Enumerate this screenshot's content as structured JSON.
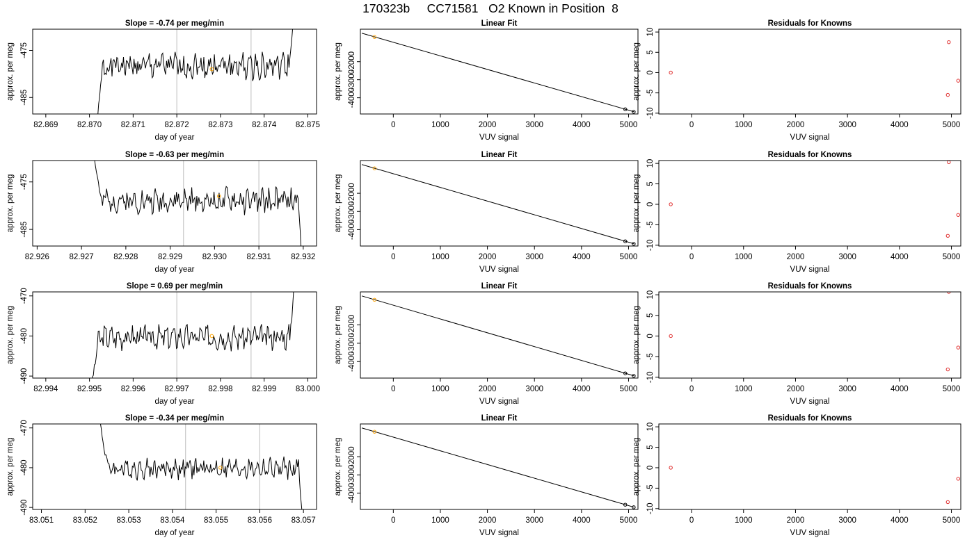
{
  "page": {
    "title": "170323b     CC71581   O2 Known in Position  8"
  },
  "colors": {
    "trace": "#000000",
    "vline": "#c8c8c8",
    "highlight": "#ffa500",
    "residual": "#e03030",
    "frame": "#000000"
  },
  "chart_data": [
    {
      "type": "line",
      "panel": "time-series",
      "title": "Slope =  -0.74  per meg/min",
      "xlabel": "day of year",
      "ylabel": "approx. per meg",
      "xlim": [
        82.8687,
        82.8752
      ],
      "ylim": [
        -488.5,
        -470.5
      ],
      "xticks": [
        "82.869",
        "82.870",
        "82.871",
        "82.872",
        "82.873",
        "82.874",
        "82.875"
      ],
      "xtick_values": [
        82.869,
        82.87,
        82.871,
        82.872,
        82.873,
        82.874,
        82.875
      ],
      "yticks": [
        "-475",
        "-485"
      ],
      "ytick_values": [
        -475,
        -485
      ],
      "vlines": [
        82.872,
        82.8737
      ],
      "highlight_point": {
        "x": 82.8728,
        "y": -479
      },
      "trace": {
        "x_start": 82.8701,
        "x_end": 82.8747,
        "base": -478.3,
        "noise": 2.2,
        "start_y": -495,
        "end_y": -462,
        "seed": 1
      }
    },
    {
      "type": "scatter",
      "panel": "linear-fit",
      "title": "Linear Fit",
      "xlabel": "VUV signal",
      "ylabel": "approx. per meg",
      "xlim": [
        -700,
        5200
      ],
      "ylim": [
        -4900,
        -200
      ],
      "xticks": [
        "0",
        "1000",
        "2000",
        "3000",
        "4000",
        "5000"
      ],
      "xtick_values": [
        0,
        1000,
        2000,
        3000,
        4000,
        5000
      ],
      "yticks": [
        "-2000",
        "-3000",
        "-4000"
      ],
      "ytick_values": [
        -2000,
        -3000,
        -4000
      ],
      "line": {
        "x": [
          -670,
          5120
        ],
        "y": [
          -420,
          -4780
        ]
      },
      "points": [
        {
          "x": -400,
          "y": -630,
          "color": "orange"
        },
        {
          "x": 4930,
          "y": -4640,
          "color": "black"
        },
        {
          "x": 5110,
          "y": -4780,
          "color": "black"
        }
      ]
    },
    {
      "type": "scatter",
      "panel": "residuals",
      "title": "Residuals for Knowns",
      "xlabel": "VUV signal",
      "ylabel": "approx. per meg",
      "xlim": [
        -630,
        5180
      ],
      "ylim": [
        -10.2,
        10.7
      ],
      "xticks": [
        "0",
        "1000",
        "2000",
        "3000",
        "4000",
        "5000"
      ],
      "xtick_values": [
        0,
        1000,
        2000,
        3000,
        4000,
        5000
      ],
      "yticks": [
        "10",
        "5",
        "0",
        "-5",
        "-10"
      ],
      "ytick_values": [
        10,
        5,
        0,
        -5,
        -10
      ],
      "points": [
        {
          "x": -400,
          "y": 0
        },
        {
          "x": 4950,
          "y": 7.5
        },
        {
          "x": 5130,
          "y": -2
        },
        {
          "x": 4930,
          "y": -5.5
        }
      ]
    },
    {
      "type": "line",
      "panel": "time-series",
      "title": "Slope =  -0.63  per meg/min",
      "xlabel": "day of year",
      "ylabel": "approx. per meg",
      "xlim": [
        82.9259,
        82.9323
      ],
      "ylim": [
        -488.5,
        -470.5
      ],
      "xticks": [
        "82.926",
        "82.927",
        "82.928",
        "82.929",
        "82.930",
        "82.931",
        "82.932"
      ],
      "xtick_values": [
        82.926,
        82.927,
        82.928,
        82.929,
        82.93,
        82.931,
        82.932
      ],
      "yticks": [
        "-475",
        "-485"
      ],
      "ytick_values": [
        -475,
        -485
      ],
      "vlines": [
        82.9293,
        82.931
      ],
      "highlight_point": {
        "x": 82.9301,
        "y": -478
      },
      "trace": {
        "x_start": 82.9272,
        "x_end": 82.932,
        "base": -479,
        "noise": 2.0,
        "start_y": -463,
        "end_y": -495,
        "seed": 2
      }
    },
    {
      "type": "scatter",
      "panel": "linear-fit",
      "title": "Linear Fit",
      "xlabel": "VUV signal",
      "ylabel": "approx. per meg",
      "xlim": [
        -700,
        5200
      ],
      "ylim": [
        -4900,
        -200
      ],
      "xticks": [
        "0",
        "1000",
        "2000",
        "3000",
        "4000",
        "5000"
      ],
      "xtick_values": [
        0,
        1000,
        2000,
        3000,
        4000,
        5000
      ],
      "yticks": [
        "-2000",
        "-3000",
        "-4000"
      ],
      "ytick_values": [
        -2000,
        -3000,
        -4000
      ],
      "line": {
        "x": [
          -670,
          5120
        ],
        "y": [
          -420,
          -4780
        ]
      },
      "points": [
        {
          "x": -400,
          "y": -630,
          "color": "orange"
        },
        {
          "x": 4930,
          "y": -4640,
          "color": "black"
        },
        {
          "x": 5110,
          "y": -4780,
          "color": "black"
        }
      ]
    },
    {
      "type": "scatter",
      "panel": "residuals",
      "title": "Residuals for Knowns",
      "xlabel": "VUV signal",
      "ylabel": "approx. per meg",
      "xlim": [
        -630,
        5180
      ],
      "ylim": [
        -10.2,
        10.7
      ],
      "xticks": [
        "0",
        "1000",
        "2000",
        "3000",
        "4000",
        "5000"
      ],
      "xtick_values": [
        0,
        1000,
        2000,
        3000,
        4000,
        5000
      ],
      "yticks": [
        "10",
        "5",
        "0",
        "-5",
        "-10"
      ],
      "ytick_values": [
        10,
        5,
        0,
        -5,
        -10
      ],
      "points": [
        {
          "x": -400,
          "y": 0
        },
        {
          "x": 4950,
          "y": 10.3
        },
        {
          "x": 5130,
          "y": -2.6
        },
        {
          "x": 4930,
          "y": -7.7
        }
      ]
    },
    {
      "type": "line",
      "panel": "time-series",
      "title": "Slope =  0.69  per meg/min",
      "xlabel": "day of year",
      "ylabel": "approx. per meg",
      "xlim": [
        82.9937,
        83.0002
      ],
      "ylim": [
        -490.5,
        -469
      ],
      "xticks": [
        "82.994",
        "82.995",
        "82.996",
        "82.997",
        "82.998",
        "82.999",
        "83.000"
      ],
      "xtick_values": [
        82.994,
        82.995,
        82.996,
        82.997,
        82.998,
        82.999,
        83.0
      ],
      "yticks": [
        "-470",
        "-480",
        "-490"
      ],
      "ytick_values": [
        -470,
        -480,
        -490
      ],
      "vlines": [
        82.997,
        82.9987
      ],
      "highlight_point": {
        "x": 82.9978,
        "y": -480
      },
      "trace": {
        "x_start": 82.995,
        "x_end": 82.9997,
        "base": -480.3,
        "noise": 2.3,
        "start_y": -495,
        "end_y": -465,
        "seed": 3
      }
    },
    {
      "type": "scatter",
      "panel": "linear-fit",
      "title": "Linear Fit",
      "xlabel": "VUV signal",
      "ylabel": "approx. per meg",
      "xlim": [
        -700,
        5200
      ],
      "ylim": [
        -4900,
        -200
      ],
      "xticks": [
        "0",
        "1000",
        "2000",
        "3000",
        "4000",
        "5000"
      ],
      "xtick_values": [
        0,
        1000,
        2000,
        3000,
        4000,
        5000
      ],
      "yticks": [
        "-2000",
        "-3000",
        "-4000"
      ],
      "ytick_values": [
        -2000,
        -3000,
        -4000
      ],
      "line": {
        "x": [
          -670,
          5120
        ],
        "y": [
          -420,
          -4780
        ]
      },
      "points": [
        {
          "x": -400,
          "y": -630,
          "color": "orange"
        },
        {
          "x": 4930,
          "y": -4640,
          "color": "black"
        },
        {
          "x": 5110,
          "y": -4780,
          "color": "black"
        }
      ]
    },
    {
      "type": "scatter",
      "panel": "residuals",
      "title": "Residuals for Knowns",
      "xlabel": "VUV signal",
      "ylabel": "approx. per meg",
      "xlim": [
        -630,
        5180
      ],
      "ylim": [
        -10.2,
        10.7
      ],
      "xticks": [
        "0",
        "1000",
        "2000",
        "3000",
        "4000",
        "5000"
      ],
      "xtick_values": [
        0,
        1000,
        2000,
        3000,
        4000,
        5000
      ],
      "yticks": [
        "10",
        "5",
        "0",
        "-5",
        "-10"
      ],
      "ytick_values": [
        10,
        5,
        0,
        -5,
        -10
      ],
      "points": [
        {
          "x": -400,
          "y": 0
        },
        {
          "x": 4950,
          "y": 10.7
        },
        {
          "x": 5130,
          "y": -2.8
        },
        {
          "x": 4930,
          "y": -8.1
        }
      ]
    },
    {
      "type": "line",
      "panel": "time-series",
      "title": "Slope =  -0.34  per meg/min",
      "xlabel": "day of year",
      "ylabel": "approx. per meg",
      "xlim": [
        83.0508,
        83.0573
      ],
      "ylim": [
        -490.5,
        -469
      ],
      "xticks": [
        "83.051",
        "83.052",
        "83.053",
        "83.054",
        "83.055",
        "83.056",
        "83.057"
      ],
      "xtick_values": [
        83.051,
        83.052,
        83.053,
        83.054,
        83.055,
        83.056,
        83.057
      ],
      "yticks": [
        "-470",
        "-480",
        "-490"
      ],
      "ytick_values": [
        -470,
        -480,
        -490
      ],
      "vlines": [
        83.0543,
        83.056
      ],
      "highlight_point": {
        "x": 83.0551,
        "y": -480
      },
      "trace": {
        "x_start": 83.0523,
        "x_end": 83.057,
        "base": -480.2,
        "noise": 2.0,
        "start_y": -466,
        "end_y": -495,
        "seed": 4
      }
    },
    {
      "type": "scatter",
      "panel": "linear-fit",
      "title": "Linear Fit",
      "xlabel": "VUV signal",
      "ylabel": "approx. per meg",
      "xlim": [
        -700,
        5200
      ],
      "ylim": [
        -4900,
        -200
      ],
      "xticks": [
        "0",
        "1000",
        "2000",
        "3000",
        "4000",
        "5000"
      ],
      "xtick_values": [
        0,
        1000,
        2000,
        3000,
        4000,
        5000
      ],
      "yticks": [
        "-2000",
        "-3000",
        "-4000"
      ],
      "ytick_values": [
        -2000,
        -3000,
        -4000
      ],
      "line": {
        "x": [
          -670,
          5120
        ],
        "y": [
          -420,
          -4780
        ]
      },
      "points": [
        {
          "x": -400,
          "y": -630,
          "color": "orange"
        },
        {
          "x": 4930,
          "y": -4640,
          "color": "black"
        },
        {
          "x": 5110,
          "y": -4780,
          "color": "black"
        }
      ]
    },
    {
      "type": "scatter",
      "panel": "residuals",
      "title": "Residuals for Knowns",
      "xlabel": "VUV signal",
      "ylabel": "approx. per meg",
      "xlim": [
        -630,
        5180
      ],
      "ylim": [
        -10.2,
        10.7
      ],
      "xticks": [
        "0",
        "1000",
        "2000",
        "3000",
        "4000",
        "5000"
      ],
      "xtick_values": [
        0,
        1000,
        2000,
        3000,
        4000,
        5000
      ],
      "yticks": [
        "10",
        "5",
        "0",
        "-5",
        "-10"
      ],
      "ytick_values": [
        10,
        5,
        0,
        -5,
        -10
      ],
      "points": [
        {
          "x": -400,
          "y": 0
        },
        {
          "x": 5130,
          "y": -2.7
        },
        {
          "x": 4930,
          "y": -8.4
        }
      ]
    }
  ]
}
